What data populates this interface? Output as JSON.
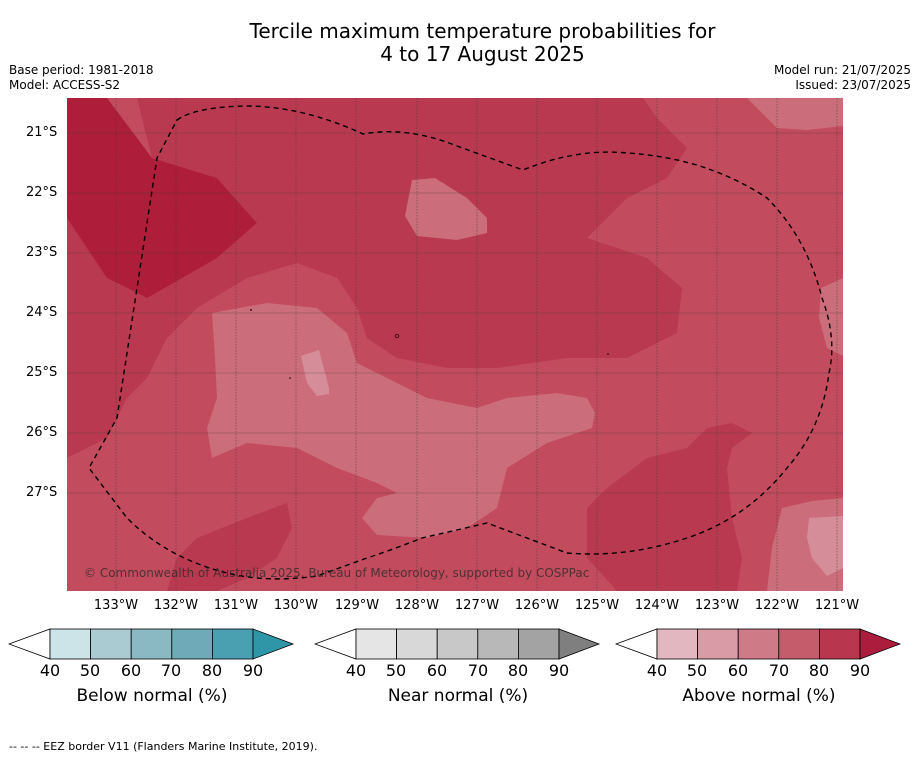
{
  "title_line1": "Tercile maximum temperature probabilities for",
  "title_line2": "4 to 17 August 2025",
  "base_period": "Base period: 1981-2018",
  "model": "Model: ACCESS-S2",
  "model_run": "Model run: 21/07/2025",
  "issued": "Issued: 23/07/2025",
  "copyright": "© Commonwealth of Australia 2025, Bureau of Meteorology, supported by COSPPac",
  "footer": "--  --  -- EEZ border V11 (Flanders Marine Institute, 2019).",
  "latitudes": [
    "21°S",
    "22°S",
    "23°S",
    "24°S",
    "25°S",
    "26°S",
    "27°S"
  ],
  "longitudes": [
    "133°W",
    "132°W",
    "131°W",
    "130°W",
    "129°W",
    "128°W",
    "127°W",
    "126°W",
    "125°W",
    "124°W",
    "123°W",
    "122°W",
    "121°W"
  ],
  "colorbars": [
    {
      "label": "Below normal (%)",
      "ticks": [
        "40",
        "50",
        "60",
        "70",
        "80",
        "90"
      ],
      "colors": [
        "#ffffff",
        "#cce3e8",
        "#aacbd2",
        "#8ab9c4",
        "#6eaab8",
        "#4a9fb0",
        "#2f96a8"
      ]
    },
    {
      "label": "Near normal (%)",
      "ticks": [
        "40",
        "50",
        "60",
        "70",
        "80",
        "90"
      ],
      "colors": [
        "#ffffff",
        "#e5e5e5",
        "#d8d8d8",
        "#c8c8c8",
        "#b8b8b8",
        "#a3a3a3",
        "#7f7f7f"
      ]
    },
    {
      "label": "Above normal (%)",
      "ticks": [
        "40",
        "50",
        "60",
        "70",
        "80",
        "90"
      ],
      "colors": [
        "#ffffff",
        "#e2b7bf",
        "#d99ba6",
        "#cf7b87",
        "#c45c6c",
        "#b9374e",
        "#ac1c3c"
      ]
    }
  ],
  "map_colors": {
    "above_50_60": "#d58d99",
    "above_60_70": "#cc6d7b",
    "above_70_80": "#c24b5e",
    "above_80_90": "#b93a50",
    "above_90": "#ae1d3a"
  }
}
